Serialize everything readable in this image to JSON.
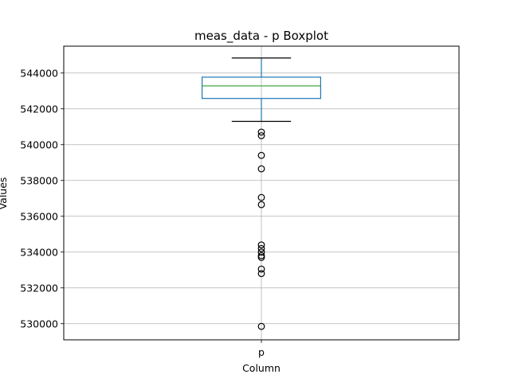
{
  "chart_data": {
    "type": "boxplot",
    "title": "meas_data - p Boxplot",
    "xlabel": "Column",
    "ylabel": "Values",
    "categories": [
      "p"
    ],
    "ylim": [
      529100,
      545500
    ],
    "yticks": [
      530000,
      532000,
      534000,
      536000,
      538000,
      540000,
      542000,
      544000
    ],
    "ytick_labels": [
      "530000",
      "532000",
      "534000",
      "536000",
      "538000",
      "540000",
      "542000",
      "544000"
    ],
    "grid": true,
    "boxes": [
      {
        "name": "p",
        "whisker_low": 541300,
        "q1": 542580,
        "median": 543280,
        "q3": 543770,
        "whisker_high": 544840,
        "outliers": [
          540700,
          540500,
          539400,
          538650,
          537050,
          536650,
          534400,
          534200,
          534000,
          533800,
          533700,
          533050,
          532800,
          529850
        ]
      }
    ],
    "colors": {
      "box": "#1f77b4",
      "median": "#2ca02c",
      "whisker": "#1f77b4",
      "cap": "#000000",
      "outlier": "#000000",
      "grid": "#b0b0b0"
    }
  }
}
